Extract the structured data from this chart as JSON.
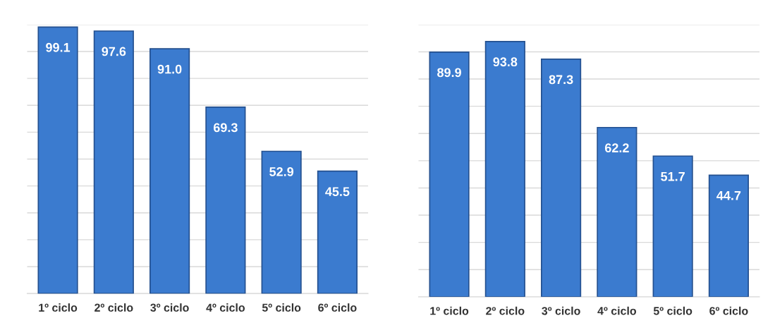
{
  "chart_data": [
    {
      "type": "bar",
      "categories": [
        "1º ciclo",
        "2º ciclo",
        "3º ciclo",
        "4º ciclo",
        "5º ciclo",
        "6º ciclo"
      ],
      "values": [
        99.1,
        97.6,
        91.0,
        69.3,
        52.9,
        45.5
      ],
      "color": "#3b7bcf",
      "ylim": [
        0,
        100
      ],
      "yticks": [
        {
          "value": 0,
          "label": null
        },
        {
          "value": 10,
          "label": null
        },
        {
          "value": 20,
          "label": null
        },
        {
          "value": 30,
          "label": null
        },
        {
          "value": 40,
          "label": null
        },
        {
          "value": 50,
          "label": null
        },
        {
          "value": 60,
          "label": null
        },
        {
          "value": 70,
          "label": null
        },
        {
          "value": 80,
          "label": null
        },
        {
          "value": 90,
          "label": null
        },
        {
          "value": 100,
          "label": null
        }
      ],
      "grid": "y",
      "tick_labels": "x",
      "value_labels": [
        "99.1",
        "97.6",
        "91.0",
        "69.3",
        "52.9",
        "45.5"
      ]
    },
    {
      "type": "bar",
      "categories": [
        "1º ciclo",
        "2º ciclo",
        "3º ciclo",
        "4º ciclo",
        "5º ciclo",
        "6º ciclo"
      ],
      "values": [
        89.9,
        93.8,
        87.3,
        62.2,
        51.7,
        44.7
      ],
      "color": "#3b7bcf",
      "ylim": [
        0,
        100
      ],
      "yticks": [
        {
          "value": 0,
          "label": null
        },
        {
          "value": 10,
          "label": null
        },
        {
          "value": 20,
          "label": null
        },
        {
          "value": 30,
          "label": null
        },
        {
          "value": 40,
          "label": null
        },
        {
          "value": 50,
          "label": null
        },
        {
          "value": 60,
          "label": null
        },
        {
          "value": 70,
          "label": null
        },
        {
          "value": 80,
          "label": null
        },
        {
          "value": 90,
          "label": null
        },
        {
          "value": 100,
          "label": null
        }
      ],
      "grid": "y",
      "tick_labels": "x",
      "value_labels": [
        "89.9",
        "93.8",
        "87.3",
        "62.2",
        "51.7",
        "44.7"
      ]
    }
  ]
}
